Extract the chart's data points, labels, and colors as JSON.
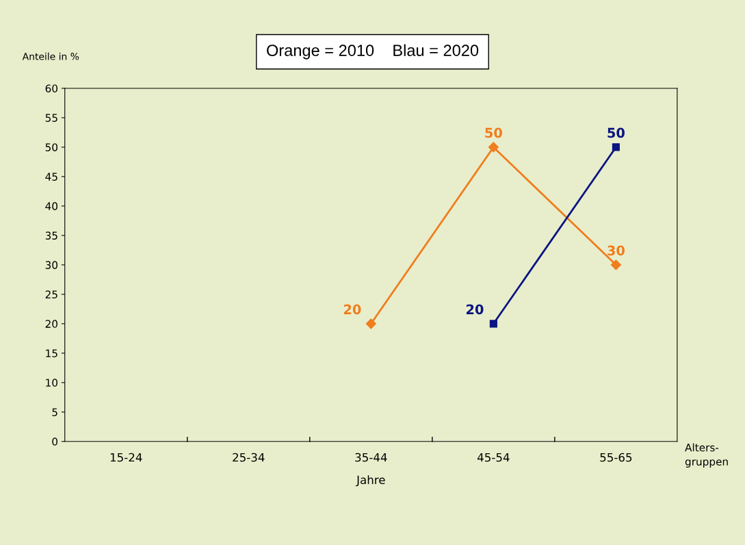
{
  "chart_data": {
    "type": "line",
    "title": "Orange = 2010    Blau = 2020",
    "ylabel": "Anteile in %",
    "xlabel": "Jahre",
    "annotations": [
      "Alters-\ngruppen"
    ],
    "categories": [
      "15-24",
      "25-34",
      "35-44",
      "45-54",
      "55-65"
    ],
    "series": [
      {
        "color": "#f07d1e",
        "values": [
          null,
          null,
          20,
          50,
          30
        ],
        "marker": "diamond"
      },
      {
        "color": "#0a1482",
        "values": [
          null,
          null,
          null,
          20,
          50
        ],
        "marker": "square"
      }
    ],
    "ylim": [
      0,
      60
    ],
    "yticks": [
      0,
      5,
      10,
      15,
      20,
      25,
      30,
      35,
      40,
      45,
      50,
      55,
      60
    ],
    "data_labels": true,
    "grid": false,
    "legend": false,
    "line_style": "solid"
  }
}
